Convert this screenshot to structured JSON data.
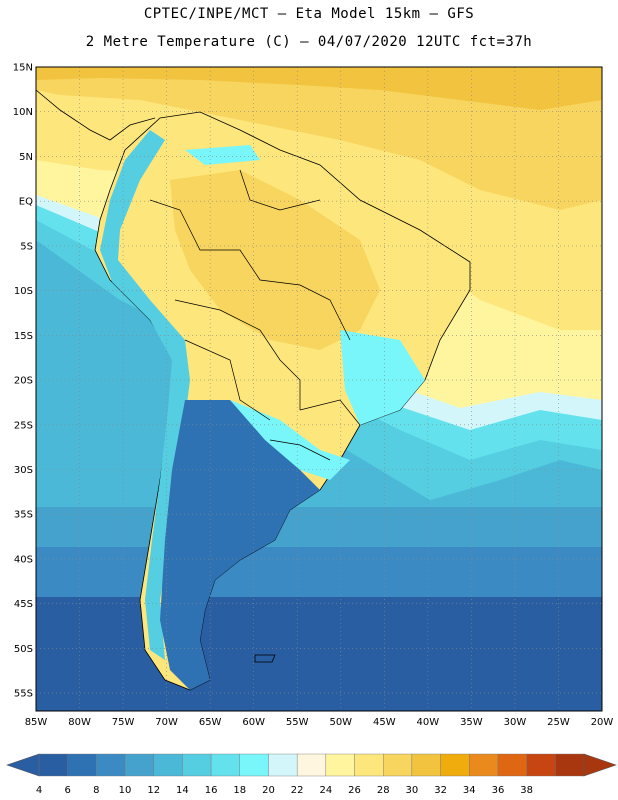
{
  "header": {
    "line1": "CPTEC/INPE/MCT –  Eta Model 15km – GFS",
    "line2": "2 Metre Temperature (C) – 04/07/2020 12UTC fct=37h"
  },
  "map": {
    "lat_labels": [
      "15N",
      "10N",
      "5N",
      "EQ",
      "5S",
      "10S",
      "15S",
      "20S",
      "25S",
      "30S",
      "35S",
      "40S",
      "45S",
      "50S",
      "55S"
    ],
    "lon_labels": [
      "85W",
      "80W",
      "75W",
      "70W",
      "65W",
      "60W",
      "55W",
      "50W",
      "45W",
      "40W",
      "35W",
      "30W",
      "25W",
      "20W"
    ],
    "lat_range": [
      15,
      -57
    ],
    "lon_range": [
      -85,
      -20
    ]
  },
  "colorbar": {
    "labels": [
      "4",
      "6",
      "8",
      "10",
      "12",
      "14",
      "16",
      "18",
      "20",
      "22",
      "24",
      "26",
      "28",
      "30",
      "32",
      "34",
      "36",
      "38"
    ],
    "colors": [
      "#2a5ea3",
      "#2f72b3",
      "#3b8ac4",
      "#44a2cd",
      "#4cb8d8",
      "#56cee2",
      "#63e2ee",
      "#79f6f9",
      "#d2f6fa",
      "#fff6e0",
      "#fff59e",
      "#fde67c",
      "#f7d55e",
      "#f2c33e",
      "#f0ac0c",
      "#ea8a1c",
      "#df6612",
      "#c64510",
      "#a8360e"
    ]
  }
}
